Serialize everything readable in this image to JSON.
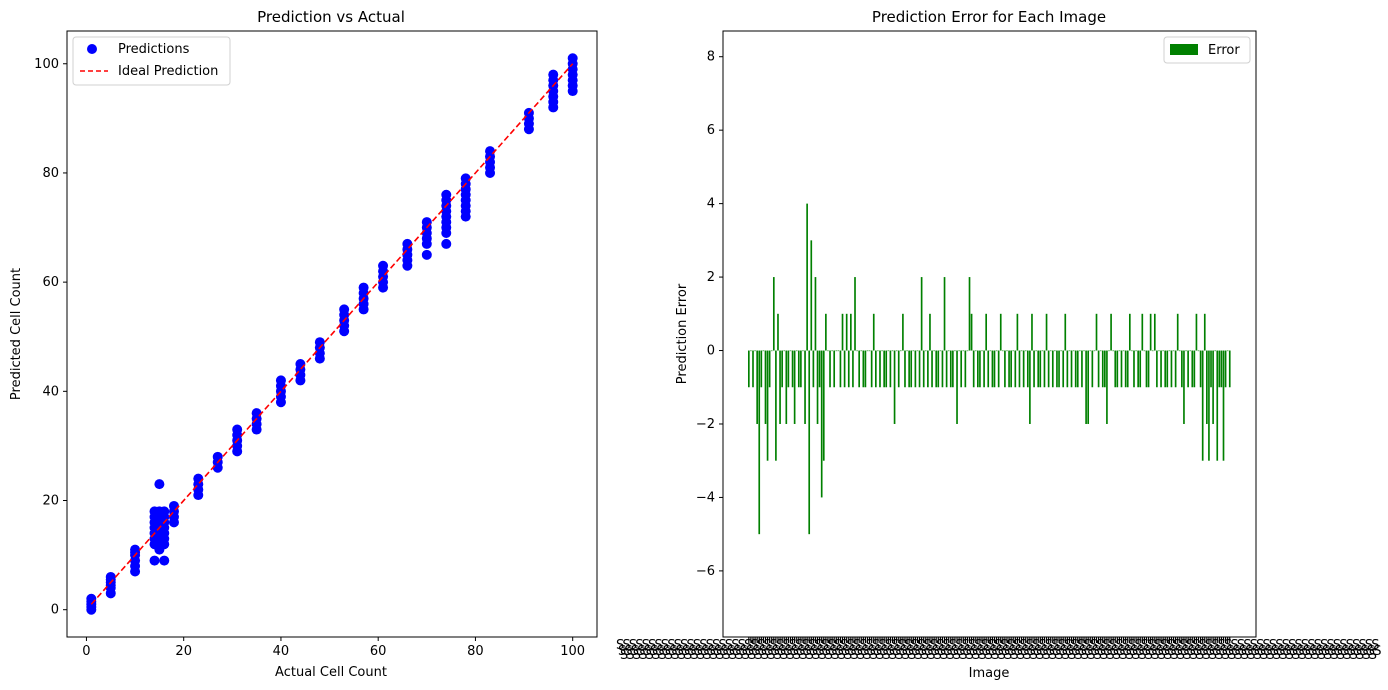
{
  "chart_data": [
    {
      "type": "scatter",
      "title": "Prediction vs Actual",
      "xlabel": "Actual Cell Count",
      "ylabel": "Predicted Cell Count",
      "xlim": [
        -4,
        105
      ],
      "ylim": [
        -5,
        106
      ],
      "xticks": [
        "0",
        "20",
        "40",
        "60",
        "80",
        "100"
      ],
      "yticks": [
        "0",
        "20",
        "40",
        "60",
        "80",
        "100"
      ],
      "legend_position": "upper-left",
      "legend": [
        "Predictions",
        "Ideal Prediction"
      ],
      "colors": {
        "points": "#0000ff",
        "ideal": "#ff0000"
      },
      "ideal_line": {
        "x": [
          1,
          100
        ],
        "y": [
          1,
          100
        ]
      },
      "series": [
        {
          "x": 1,
          "y": [
            0,
            0.5,
            1,
            1.5,
            2
          ]
        },
        {
          "x": 5,
          "y": [
            3,
            4,
            4.5,
            5,
            5.5,
            6
          ]
        },
        {
          "x": 10,
          "y": [
            7,
            8,
            9,
            10,
            10.5,
            11
          ]
        },
        {
          "x": 14,
          "y": [
            9,
            12,
            13,
            14,
            15,
            16,
            17,
            18
          ]
        },
        {
          "x": 15,
          "y": [
            11,
            12,
            13,
            14,
            15,
            16,
            17,
            18,
            23
          ]
        },
        {
          "x": 16,
          "y": [
            9,
            12,
            13,
            14,
            15,
            16,
            17,
            18
          ]
        },
        {
          "x": 18,
          "y": [
            16,
            17,
            18,
            19
          ]
        },
        {
          "x": 23,
          "y": [
            21,
            22,
            23,
            24
          ]
        },
        {
          "x": 27,
          "y": [
            26,
            27,
            28
          ]
        },
        {
          "x": 31,
          "y": [
            29,
            30,
            31,
            32,
            33
          ]
        },
        {
          "x": 35,
          "y": [
            33,
            34,
            35,
            36
          ]
        },
        {
          "x": 40,
          "y": [
            38,
            39,
            40,
            41,
            42
          ]
        },
        {
          "x": 44,
          "y": [
            42,
            43,
            44,
            45
          ]
        },
        {
          "x": 48,
          "y": [
            46,
            47,
            48,
            49
          ]
        },
        {
          "x": 53,
          "y": [
            51,
            52,
            53,
            54,
            55
          ]
        },
        {
          "x": 57,
          "y": [
            55,
            56,
            57,
            58,
            59
          ]
        },
        {
          "x": 61,
          "y": [
            59,
            60,
            61,
            62,
            63
          ]
        },
        {
          "x": 66,
          "y": [
            63,
            64,
            65,
            66,
            67
          ]
        },
        {
          "x": 70,
          "y": [
            65,
            67,
            68,
            69,
            70,
            71
          ]
        },
        {
          "x": 74,
          "y": [
            67,
            69,
            70,
            71,
            72,
            73,
            74,
            75,
            76
          ]
        },
        {
          "x": 78,
          "y": [
            72,
            73,
            74,
            75,
            76,
            77,
            78,
            79
          ]
        },
        {
          "x": 83,
          "y": [
            80,
            81,
            82,
            83,
            84
          ]
        },
        {
          "x": 91,
          "y": [
            88,
            89,
            90,
            91
          ]
        },
        {
          "x": 96,
          "y": [
            92,
            93,
            94,
            95,
            96,
            97,
            98
          ]
        },
        {
          "x": 100,
          "y": [
            95,
            96,
            97,
            98,
            99,
            100,
            101
          ]
        }
      ]
    },
    {
      "type": "bar",
      "title": "Prediction Error for Each Image",
      "xlabel": "Image",
      "ylabel": "Prediction Error",
      "ylim": [
        -7.8,
        8.7
      ],
      "yticks": [
        "−6",
        "−4",
        "−2",
        "0",
        "2",
        "4",
        "6",
        "8"
      ],
      "legend_position": "upper-right",
      "legend": [
        "Error"
      ],
      "colors": {
        "bars": "#008000"
      },
      "values": [
        -1,
        0,
        -1,
        0,
        -2,
        -5,
        -1,
        0,
        -2,
        -3,
        -1,
        0,
        2,
        -3,
        1,
        -2,
        -1,
        0,
        -2,
        -1,
        0,
        -1,
        -2,
        0,
        -1,
        -1,
        0,
        -2,
        4,
        -5,
        3,
        -1,
        2,
        -2,
        -1,
        -4,
        -3,
        1,
        0,
        -1,
        0,
        -1,
        0,
        0,
        -1,
        1,
        -1,
        1,
        -1,
        1,
        -1,
        2,
        0,
        -1,
        0,
        -1,
        -1,
        0,
        0,
        -1,
        1,
        -1,
        0,
        -1,
        0,
        -1,
        -1,
        0,
        -1,
        0,
        -2,
        0,
        -1,
        0,
        1,
        -1,
        0,
        -1,
        -1,
        0,
        -1,
        0,
        -1,
        2,
        -1,
        0,
        -1,
        1,
        -1,
        0,
        -1,
        -1,
        0,
        -1,
        2,
        -1,
        0,
        -1,
        -1,
        0,
        -2,
        0,
        -1,
        0,
        -1,
        0,
        2,
        1,
        -1,
        0,
        -1,
        -1,
        0,
        -1,
        1,
        -1,
        0,
        -1,
        -1,
        0,
        -1,
        1,
        0,
        -1,
        0,
        -1,
        -1,
        0,
        -1,
        1,
        -1,
        0,
        -1,
        0,
        -1,
        -2,
        1,
        -1,
        0,
        -1,
        -1,
        0,
        -1,
        1,
        -1,
        0,
        -1,
        0,
        -1,
        -1,
        0,
        -1,
        1,
        -1,
        0,
        -1,
        0,
        -1,
        -1,
        0,
        -1,
        0,
        -2,
        -2,
        0,
        -1,
        0,
        1,
        -1,
        0,
        -1,
        -1,
        -2,
        0,
        1,
        0,
        -1,
        -1,
        0,
        -1,
        0,
        -1,
        -1,
        1,
        0,
        -1,
        0,
        -1,
        -1,
        1,
        0,
        -1,
        -1,
        1,
        0,
        1,
        -1,
        0,
        -1,
        0,
        -1,
        -1,
        0,
        -1,
        0,
        -1,
        1,
        0,
        -1,
        -2,
        0,
        -1,
        0,
        -1,
        -1,
        1,
        0,
        -1,
        -3,
        1,
        -2,
        -3,
        -1,
        -2,
        0,
        -3,
        -1,
        -1,
        -3,
        -1,
        0,
        -1
      ],
      "x_ticklabel_text": "S"
    }
  ]
}
